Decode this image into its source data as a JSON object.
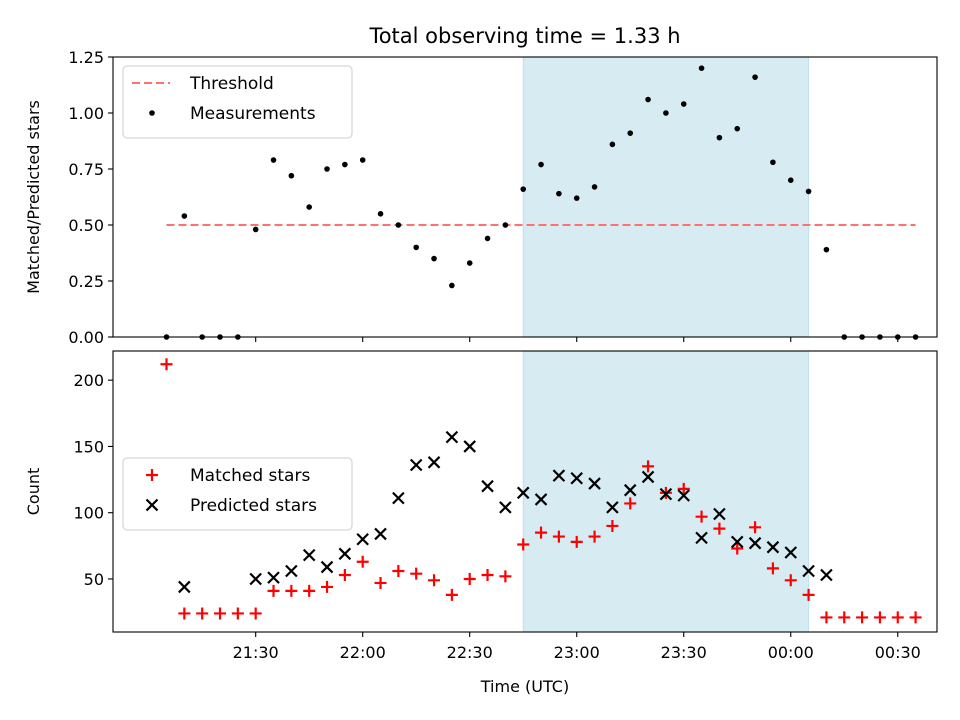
{
  "chart_data": {
    "type": "scatter",
    "title": "Total observing time = 1.33 h",
    "xlabel": "Time (UTC)",
    "shared_x_axis": true,
    "x_tick_labels": [
      "21:30",
      "22:00",
      "22:30",
      "23:00",
      "23:30",
      "00:00",
      "00:30"
    ],
    "x_ticks_minutes_after_2100": [
      30,
      60,
      90,
      120,
      150,
      180,
      210
    ],
    "xlim_minutes_after_2100": [
      -10,
      221
    ],
    "shaded_region_minutes_after_2100": [
      105,
      185
    ],
    "shaded_color": "#add8e6",
    "panels": [
      {
        "ylabel": "Matched/Predicted stars",
        "ylim": [
          0,
          1.25
        ],
        "yticks": [
          "0.00",
          "0.25",
          "0.50",
          "0.75",
          "1.00",
          "1.25"
        ],
        "legend_position": "upper-left",
        "threshold": {
          "name": "Threshold",
          "value": 0.5,
          "x_range": [
            5,
            215
          ],
          "color": "#ff7070",
          "style": "dashed"
        },
        "series": [
          {
            "name": "Measurements",
            "marker": "dot",
            "color": "#000000",
            "x": [
              5,
              10,
              15,
              20,
              25,
              30,
              35,
              40,
              45,
              50,
              55,
              60,
              65,
              70,
              75,
              80,
              85,
              90,
              95,
              100,
              105,
              110,
              115,
              120,
              125,
              130,
              135,
              140,
              145,
              150,
              155,
              160,
              165,
              170,
              175,
              180,
              185,
              190,
              195,
              200,
              205,
              210,
              215
            ],
            "y": [
              0.0,
              0.54,
              0.0,
              0.0,
              0.0,
              0.48,
              0.79,
              0.72,
              0.58,
              0.75,
              0.77,
              0.79,
              0.55,
              0.5,
              0.4,
              0.35,
              0.23,
              0.33,
              0.44,
              0.5,
              0.66,
              0.77,
              0.64,
              0.62,
              0.67,
              0.86,
              0.91,
              1.06,
              1.0,
              1.04,
              1.2,
              0.89,
              0.93,
              1.16,
              0.78,
              0.7,
              0.65,
              0.39,
              0.0,
              0.0,
              0.0,
              0.0,
              0.0
            ]
          }
        ]
      },
      {
        "ylabel": "Count",
        "ylim": [
          10,
          222
        ],
        "yticks": [
          "50",
          "100",
          "150",
          "200"
        ],
        "legend_position": "center-left",
        "series": [
          {
            "name": "Matched stars",
            "marker": "plus",
            "color": "#ff0000",
            "x": [
              5,
              10,
              15,
              20,
              25,
              30,
              35,
              40,
              45,
              50,
              55,
              60,
              65,
              70,
              75,
              80,
              85,
              90,
              95,
              100,
              105,
              110,
              115,
              120,
              125,
              130,
              135,
              140,
              145,
              150,
              155,
              160,
              165,
              170,
              175,
              180,
              185,
              190,
              195,
              200,
              205,
              210,
              215
            ],
            "y": [
              212,
              24,
              24,
              24,
              24,
              24,
              41,
              41,
              41,
              44,
              53,
              63,
              47,
              56,
              54,
              49,
              38,
              50,
              53,
              52,
              76,
              85,
              82,
              78,
              82,
              90,
              107,
              135,
              115,
              118,
              97,
              88,
              73,
              89,
              58,
              49,
              38,
              21,
              21,
              21,
              21,
              21,
              21
            ]
          },
          {
            "name": "Predicted stars",
            "marker": "x",
            "color": "#000000",
            "x": [
              10,
              30,
              35,
              40,
              45,
              50,
              55,
              60,
              65,
              70,
              75,
              80,
              85,
              90,
              95,
              100,
              105,
              110,
              115,
              120,
              125,
              130,
              135,
              140,
              145,
              150,
              155,
              160,
              165,
              170,
              175,
              180,
              185,
              190
            ],
            "y": [
              44,
              50,
              51,
              56,
              68,
              59,
              69,
              80,
              84,
              111,
              136,
              138,
              157,
              150,
              120,
              104,
              115,
              110,
              128,
              126,
              122,
              104,
              117,
              127,
              114,
              113,
              81,
              99,
              78,
              77,
              74,
              70,
              56,
              53
            ]
          }
        ]
      }
    ]
  }
}
